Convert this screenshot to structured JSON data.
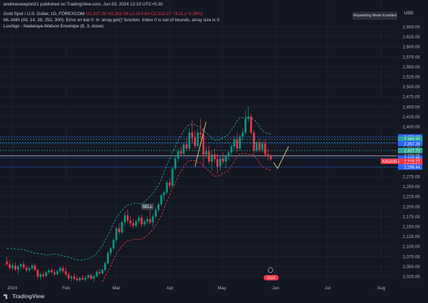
{
  "header": {
    "publisher_line": "andrewswaylon21 published on TradingView.com, Jun 03, 2024 12:10 UTC+5:30",
    "symbol": "Gold Spot / U.S. Dollar, 1D, FOREXCOM",
    "ohlc": "O2,327.38  H2,331.09  L2,314.84  C2,318.27  −9.11 (−0.39%)",
    "indicator1": "ML-kNN (All, 14, 28, 252, 300): Error on bar 0: In 'array.get()' function. Index 0 is out of bounds, array size is 0.",
    "indicator2": "LuxAlgo - Nadaraya-Watson Envelope (8, 3, close)"
  },
  "repainting_label": "Repainting Mode Enabled",
  "currency": "USD",
  "watermark": "TradingView",
  "colors": {
    "background": "#131722",
    "up": "#089981",
    "down": "#f23645",
    "blue_line": "#2962ff",
    "teal_line": "#26a69a",
    "envelope_upper": "#26a69a",
    "envelope_lower": "#f23645"
  },
  "chart_data": {
    "type": "candlestick",
    "symbol": "XAUUSD",
    "ylim": [
      2000,
      2665
    ],
    "y_ticks": [
      2025,
      2050,
      2075,
      2100,
      2125,
      2150,
      2175,
      2200,
      2225,
      2250,
      2275,
      2300,
      2325,
      2350,
      2375,
      2400,
      2425,
      2450,
      2475,
      2500,
      2525,
      2550,
      2575,
      2600,
      2625,
      2650
    ],
    "y_tick_labels": [
      "2,025.00",
      "2,050.00",
      "2,075.00",
      "2,100.00",
      "2,125.00",
      "2,150.00",
      "2,175.00",
      "2,200.00",
      "2,225.00",
      "2,250.00",
      "2,275.00",
      "2,300.00",
      "2,325.00",
      "2,350.00",
      "2,375.00",
      "2,400.00",
      "2,425.00",
      "2,450.00",
      "2,475.00",
      "2,500.00",
      "2,525.00",
      "2,550.00",
      "2,575.00",
      "2,600.00",
      "2,625.00",
      "2,650.00"
    ],
    "x_labels": [
      {
        "label": "2024",
        "date": "2024-01-01"
      },
      {
        "label": "Feb",
        "date": "2024-02-01"
      },
      {
        "label": "Mar",
        "date": "2024-03-01"
      },
      {
        "label": "Apr",
        "date": "2024-04-01"
      },
      {
        "label": "May",
        "date": "2024-05-01"
      },
      {
        "label": "Jun",
        "date": "2024-06-01"
      },
      {
        "label": "Jul",
        "date": "2024-07-01"
      },
      {
        "label": "Aug",
        "date": "2024-08-01"
      }
    ],
    "price_badges": [
      {
        "label": "2,373.80",
        "value": 2373.8,
        "color": "#2962ff"
      },
      {
        "label": "2,368.35",
        "value": 2368.35,
        "color": "#26a69a"
      },
      {
        "label": "2,359.82",
        "value": 2359.82,
        "color": "#26a69a"
      },
      {
        "label": "2,357.28",
        "value": 2357.28,
        "color": "#2962ff"
      },
      {
        "label": "2,327.72",
        "value": 2340,
        "color": "#26a69a"
      },
      {
        "label": "2,326.69",
        "value": 2326.69,
        "color": "#2a2e39"
      },
      {
        "label": "2,320.86",
        "value": 2320.86,
        "color": "#2962ff"
      },
      {
        "label": "2,318.27",
        "value": 2313,
        "color": "#f23645"
      },
      {
        "label": "14:18:51",
        "value": 2305,
        "color": "#f23645"
      },
      {
        "label": "2,298.44",
        "value": 2298.44,
        "color": "#2962ff"
      }
    ],
    "symbol_label": "XAUUSD",
    "annotations": [
      {
        "text": "SELL",
        "x_date": "2024-03-19",
        "y": 2190
      }
    ],
    "event_badge": "2312",
    "candles": [
      [
        2062,
        2073,
        2050,
        2055
      ],
      [
        2055,
        2065,
        2041,
        2046
      ],
      [
        2046,
        2058,
        2040,
        2052
      ],
      [
        2052,
        2060,
        2038,
        2042
      ],
      [
        2042,
        2053,
        2030,
        2050
      ],
      [
        2050,
        2058,
        2044,
        2055
      ],
      [
        2055,
        2062,
        2043,
        2047
      ],
      [
        2047,
        2054,
        2036,
        2040
      ],
      [
        2040,
        2050,
        2035,
        2045
      ],
      [
        2045,
        2058,
        2040,
        2052
      ],
      [
        2052,
        2056,
        2038,
        2041
      ],
      [
        2041,
        2045,
        2018,
        2024
      ],
      [
        2024,
        2034,
        2016,
        2030
      ],
      [
        2030,
        2038,
        2020,
        2026
      ],
      [
        2026,
        2040,
        2022,
        2035
      ],
      [
        2035,
        2045,
        2030,
        2040
      ],
      [
        2040,
        2048,
        2032,
        2035
      ],
      [
        2035,
        2043,
        2027,
        2030
      ],
      [
        2030,
        2042,
        2028,
        2038
      ],
      [
        2038,
        2050,
        2033,
        2046
      ],
      [
        2046,
        2052,
        2034,
        2038
      ],
      [
        2038,
        2046,
        2025,
        2030
      ],
      [
        2030,
        2036,
        2015,
        2020
      ],
      [
        2020,
        2028,
        2010,
        2024
      ],
      [
        2024,
        2032,
        2016,
        2019
      ],
      [
        2019,
        2025,
        2005,
        2015
      ],
      [
        2015,
        2025,
        2010,
        2021
      ],
      [
        2021,
        2029,
        2014,
        2017
      ],
      [
        2017,
        2026,
        2012,
        2022
      ],
      [
        2022,
        2030,
        2018,
        2028
      ],
      [
        2028,
        2032,
        2016,
        2019
      ],
      [
        2019,
        2028,
        2012,
        2025
      ],
      [
        2025,
        2040,
        2022,
        2036
      ],
      [
        2036,
        2044,
        2028,
        2032
      ],
      [
        2032,
        2044,
        2030,
        2041
      ],
      [
        2041,
        2062,
        2038,
        2058
      ],
      [
        2058,
        2088,
        2055,
        2083
      ],
      [
        2083,
        2098,
        2076,
        2095
      ],
      [
        2095,
        2120,
        2090,
        2116
      ],
      [
        2116,
        2150,
        2110,
        2145
      ],
      [
        2145,
        2158,
        2128,
        2135
      ],
      [
        2135,
        2165,
        2130,
        2160
      ],
      [
        2160,
        2186,
        2152,
        2178
      ],
      [
        2178,
        2192,
        2158,
        2165
      ],
      [
        2165,
        2176,
        2150,
        2158
      ],
      [
        2158,
        2170,
        2145,
        2152
      ],
      [
        2152,
        2168,
        2146,
        2163
      ],
      [
        2163,
        2178,
        2158,
        2172
      ],
      [
        2172,
        2180,
        2148,
        2155
      ],
      [
        2155,
        2168,
        2150,
        2162
      ],
      [
        2162,
        2175,
        2155,
        2168
      ],
      [
        2168,
        2200,
        2155,
        2160
      ],
      [
        2160,
        2182,
        2148,
        2175
      ],
      [
        2175,
        2198,
        2170,
        2192
      ],
      [
        2192,
        2210,
        2185,
        2205
      ],
      [
        2205,
        2232,
        2200,
        2228
      ],
      [
        2228,
        2240,
        2215,
        2235
      ],
      [
        2235,
        2265,
        2230,
        2260
      ],
      [
        2260,
        2270,
        2245,
        2252
      ],
      [
        2252,
        2300,
        2248,
        2295
      ],
      [
        2295,
        2325,
        2290,
        2320
      ],
      [
        2320,
        2345,
        2310,
        2338
      ],
      [
        2338,
        2350,
        2325,
        2332
      ],
      [
        2332,
        2362,
        2328,
        2355
      ],
      [
        2355,
        2372,
        2340,
        2345
      ],
      [
        2345,
        2395,
        2340,
        2385
      ],
      [
        2385,
        2416,
        2360,
        2372
      ],
      [
        2372,
        2390,
        2345,
        2352
      ],
      [
        2352,
        2395,
        2348,
        2385
      ],
      [
        2385,
        2420,
        2370,
        2380
      ],
      [
        2380,
        2395,
        2300,
        2330
      ],
      [
        2330,
        2348,
        2320,
        2338
      ],
      [
        2338,
        2352,
        2305,
        2312
      ],
      [
        2312,
        2340,
        2290,
        2330
      ],
      [
        2330,
        2345,
        2310,
        2318
      ],
      [
        2318,
        2332,
        2282,
        2300
      ],
      [
        2300,
        2326,
        2290,
        2320
      ],
      [
        2320,
        2335,
        2306,
        2312
      ],
      [
        2312,
        2330,
        2295,
        2325
      ],
      [
        2325,
        2340,
        2315,
        2335
      ],
      [
        2335,
        2355,
        2328,
        2350
      ],
      [
        2350,
        2375,
        2342,
        2368
      ],
      [
        2368,
        2385,
        2335,
        2345
      ],
      [
        2345,
        2380,
        2340,
        2375
      ],
      [
        2375,
        2395,
        2365,
        2385
      ],
      [
        2385,
        2440,
        2380,
        2420
      ],
      [
        2420,
        2450,
        2410,
        2425
      ],
      [
        2425,
        2432,
        2380,
        2385
      ],
      [
        2385,
        2392,
        2330,
        2340
      ],
      [
        2340,
        2365,
        2335,
        2360
      ],
      [
        2360,
        2370,
        2335,
        2342
      ],
      [
        2342,
        2365,
        2335,
        2358
      ],
      [
        2358,
        2368,
        2325,
        2330
      ],
      [
        2330,
        2345,
        2315,
        2327
      ],
      [
        2327,
        2331,
        2314,
        2318
      ]
    ]
  }
}
